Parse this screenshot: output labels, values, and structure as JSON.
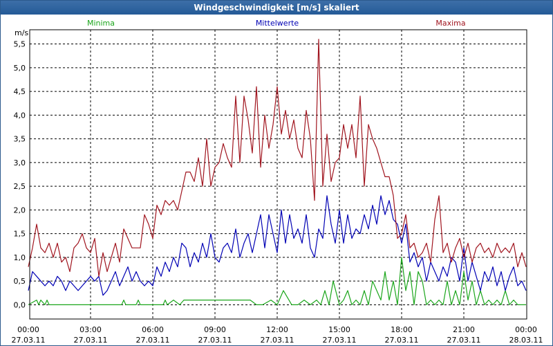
{
  "window": {
    "title": "Windgeschwindigkeit [m/s] skaliert"
  },
  "chart_data": {
    "type": "line",
    "title": "Windgeschwindigkeit [m/s] skaliert",
    "ylabel": "m/s",
    "xlabel": "",
    "ylim": [
      -0.3,
      5.8
    ],
    "xlim": [
      0,
      24
    ],
    "grid": true,
    "y_ticks": [
      "0,0",
      "0,5",
      "1,0",
      "1,5",
      "2,0",
      "2,5",
      "3,0",
      "3,5",
      "4,0",
      "4,5",
      "5,0",
      "5,5"
    ],
    "y_tick_values": [
      0,
      0.5,
      1,
      1.5,
      2,
      2.5,
      3,
      3.5,
      4,
      4.5,
      5,
      5.5
    ],
    "x_ticks": [
      {
        "time": "00:00",
        "date": "27.03.11",
        "hour": 0
      },
      {
        "time": "03:00",
        "date": "27.03.11",
        "hour": 3
      },
      {
        "time": "06:00",
        "date": "27.03.11",
        "hour": 6
      },
      {
        "time": "09:00",
        "date": "27.03.11",
        "hour": 9
      },
      {
        "time": "12:00",
        "date": "27.03.11",
        "hour": 12
      },
      {
        "time": "15:00",
        "date": "27.03.11",
        "hour": 15
      },
      {
        "time": "18:00",
        "date": "27.03.11",
        "hour": 18
      },
      {
        "time": "21:00",
        "date": "27.03.11",
        "hour": 21
      },
      {
        "time": "00:00",
        "date": "28.03.11",
        "hour": 24
      }
    ],
    "series": [
      {
        "name": "Minima",
        "color": "#1aa51a",
        "legend_position": "top-left",
        "x": [
          0,
          0.4,
          0.5,
          0.6,
          0.8,
          0.9,
          1.0,
          1.2,
          2.5,
          4.5,
          4.6,
          4.7,
          5.0,
          5.2,
          5.3,
          5.4,
          6.0,
          6.2,
          6.5,
          6.6,
          6.7,
          7.0,
          7.3,
          7.5,
          7.7,
          8.0,
          8.3,
          8.6,
          9.0,
          9.5,
          10.0,
          10.5,
          10.7,
          11.0,
          11.3,
          11.7,
          12.0,
          12.3,
          12.7,
          13.0,
          13.3,
          13.6,
          13.9,
          14.1,
          14.3,
          14.5,
          14.7,
          15.0,
          15.2,
          15.4,
          15.6,
          15.8,
          16.0,
          16.2,
          16.4,
          16.6,
          16.8,
          17.0,
          17.2,
          17.4,
          17.6,
          17.8,
          18.0,
          18.2,
          18.4,
          18.6,
          18.8,
          19.0,
          19.2,
          19.4,
          19.6,
          19.8,
          20.0,
          20.2,
          20.4,
          20.6,
          20.8,
          21.0,
          21.2,
          21.4,
          21.6,
          21.8,
          22.0,
          22.2,
          22.4,
          22.6,
          22.8,
          23.0,
          23.2,
          23.4,
          23.6,
          23.8,
          24.0
        ],
        "y": [
          0,
          0.1,
          0,
          0.1,
          0,
          0.1,
          0,
          0,
          0,
          0,
          0.1,
          0,
          0,
          0,
          0.1,
          0,
          0,
          0,
          0,
          0.1,
          0,
          0.1,
          0,
          0.1,
          0.1,
          0.1,
          0.1,
          0.1,
          0.1,
          0.1,
          0.1,
          0.1,
          0.1,
          0,
          0,
          0.1,
          0,
          0.3,
          0,
          0,
          0.1,
          0,
          0.1,
          0,
          0.3,
          0,
          0.5,
          0,
          0.1,
          0.3,
          0,
          0.1,
          0,
          0.3,
          0,
          0.5,
          0.3,
          0.1,
          0.7,
          0.1,
          0.5,
          0,
          1.0,
          0.3,
          0.7,
          0,
          0.7,
          0.5,
          0,
          0.1,
          0,
          0.1,
          0,
          0.5,
          0,
          0.3,
          0,
          0.7,
          0.1,
          0.5,
          0,
          0.3,
          0,
          0.1,
          0,
          0.1,
          0,
          0.3,
          0,
          0.1,
          0,
          0,
          0
        ]
      },
      {
        "name": "Mittelwerte",
        "color": "#0000b4",
        "legend_position": "top-center",
        "x": [
          0,
          0.2,
          0.4,
          0.6,
          0.8,
          1.0,
          1.2,
          1.4,
          1.6,
          1.8,
          2.0,
          2.2,
          2.4,
          2.6,
          2.8,
          3.0,
          3.2,
          3.4,
          3.6,
          3.8,
          4.0,
          4.2,
          4.4,
          4.6,
          4.8,
          5.0,
          5.2,
          5.4,
          5.6,
          5.8,
          6.0,
          6.2,
          6.4,
          6.6,
          6.8,
          7.0,
          7.2,
          7.4,
          7.6,
          7.8,
          8.0,
          8.2,
          8.4,
          8.6,
          8.8,
          9.0,
          9.2,
          9.4,
          9.6,
          9.8,
          10.0,
          10.2,
          10.4,
          10.6,
          10.8,
          11.0,
          11.2,
          11.4,
          11.6,
          11.8,
          12.0,
          12.2,
          12.4,
          12.6,
          12.8,
          13.0,
          13.2,
          13.4,
          13.6,
          13.8,
          14.0,
          14.2,
          14.4,
          14.6,
          14.8,
          15.0,
          15.2,
          15.4,
          15.6,
          15.8,
          16.0,
          16.2,
          16.4,
          16.6,
          16.8,
          17.0,
          17.2,
          17.4,
          17.6,
          17.8,
          18.0,
          18.2,
          18.4,
          18.6,
          18.8,
          19.0,
          19.2,
          19.4,
          19.6,
          19.8,
          20.0,
          20.2,
          20.4,
          20.6,
          20.8,
          21.0,
          21.2,
          21.4,
          21.6,
          21.8,
          22.0,
          22.2,
          22.4,
          22.6,
          22.8,
          23.0,
          23.2,
          23.4,
          23.6,
          23.8,
          24.0
        ],
        "y": [
          0.3,
          0.7,
          0.6,
          0.5,
          0.4,
          0.5,
          0.4,
          0.6,
          0.5,
          0.3,
          0.5,
          0.4,
          0.3,
          0.4,
          0.5,
          0.6,
          0.5,
          0.6,
          0.2,
          0.3,
          0.5,
          0.7,
          0.4,
          0.6,
          0.8,
          0.5,
          0.7,
          0.5,
          0.4,
          0.5,
          0.4,
          0.8,
          0.6,
          0.9,
          0.7,
          1.0,
          0.8,
          1.3,
          1.2,
          0.8,
          1.1,
          0.9,
          1.3,
          1.0,
          1.5,
          1.0,
          0.9,
          1.2,
          1.3,
          1.1,
          1.6,
          1.0,
          1.3,
          1.5,
          1.1,
          1.5,
          1.9,
          1.2,
          1.9,
          1.5,
          1.1,
          2.0,
          1.3,
          1.9,
          1.4,
          1.6,
          1.3,
          1.9,
          1.2,
          1.0,
          1.6,
          1.4,
          2.3,
          1.7,
          1.3,
          2.0,
          1.3,
          1.9,
          1.4,
          1.6,
          1.5,
          1.9,
          1.6,
          2.1,
          1.7,
          2.3,
          1.9,
          2.2,
          1.8,
          1.7,
          1.3,
          1.7,
          0.9,
          1.1,
          0.8,
          1.0,
          0.5,
          0.9,
          0.7,
          0.5,
          0.8,
          0.6,
          1.0,
          0.9,
          0.5,
          1.2,
          0.5,
          0.9,
          0.6,
          0.3,
          0.7,
          0.5,
          0.8,
          0.4,
          0.7,
          0.3,
          0.6,
          0.8,
          0.4,
          0.5,
          0.3
        ]
      },
      {
        "name": "Maxima",
        "color": "#a0141e",
        "legend_position": "top-right",
        "x": [
          0,
          0.2,
          0.4,
          0.6,
          0.8,
          1.0,
          1.2,
          1.4,
          1.6,
          1.8,
          2.0,
          2.2,
          2.4,
          2.6,
          2.8,
          3.0,
          3.2,
          3.4,
          3.6,
          3.8,
          4.0,
          4.2,
          4.4,
          4.6,
          4.8,
          5.0,
          5.2,
          5.4,
          5.6,
          5.8,
          6.0,
          6.2,
          6.4,
          6.6,
          6.8,
          7.0,
          7.2,
          7.4,
          7.6,
          7.8,
          8.0,
          8.2,
          8.4,
          8.6,
          8.8,
          9.0,
          9.2,
          9.4,
          9.6,
          9.8,
          10.0,
          10.2,
          10.4,
          10.6,
          10.8,
          11.0,
          11.2,
          11.4,
          11.6,
          11.8,
          12.0,
          12.2,
          12.4,
          12.6,
          12.8,
          13.0,
          13.2,
          13.4,
          13.6,
          13.8,
          14.0,
          14.2,
          14.4,
          14.6,
          14.8,
          15.0,
          15.2,
          15.4,
          15.6,
          15.8,
          16.0,
          16.2,
          16.4,
          16.6,
          16.8,
          17.0,
          17.2,
          17.4,
          17.6,
          17.8,
          18.0,
          18.2,
          18.4,
          18.6,
          18.8,
          19.0,
          19.2,
          19.4,
          19.6,
          19.8,
          20.0,
          20.2,
          20.4,
          20.6,
          20.8,
          21.0,
          21.2,
          21.4,
          21.6,
          21.8,
          22.0,
          22.2,
          22.4,
          22.6,
          22.8,
          23.0,
          23.2,
          23.4,
          23.6,
          23.8,
          24.0
        ],
        "y": [
          0.8,
          1.2,
          1.7,
          1.2,
          1.1,
          1.3,
          1.0,
          1.3,
          0.9,
          1.0,
          0.7,
          1.2,
          1.3,
          1.5,
          1.2,
          1.1,
          1.4,
          0.6,
          1.1,
          0.7,
          1.0,
          1.3,
          0.9,
          1.6,
          1.4,
          1.2,
          1.2,
          1.2,
          1.9,
          1.7,
          1.4,
          2.1,
          1.9,
          2.2,
          2.1,
          2.2,
          2.0,
          2.4,
          2.8,
          2.8,
          2.6,
          3.1,
          2.5,
          3.5,
          2.5,
          2.9,
          3.0,
          3.4,
          3.1,
          2.9,
          4.4,
          3.0,
          4.4,
          3.9,
          3.2,
          4.6,
          2.9,
          4.0,
          3.3,
          3.8,
          4.6,
          3.6,
          4.1,
          3.5,
          3.9,
          3.3,
          3.1,
          4.1,
          3.5,
          2.2,
          5.6,
          2.5,
          3.6,
          2.6,
          3.0,
          3.1,
          3.8,
          3.3,
          3.8,
          3.1,
          4.4,
          2.5,
          3.8,
          3.5,
          3.3,
          3.0,
          2.7,
          2.7,
          2.3,
          1.4,
          1.5,
          1.9,
          1.2,
          1.3,
          1.0,
          1.1,
          1.3,
          0.9,
          1.8,
          2.3,
          1.1,
          1.3,
          0.9,
          1.2,
          1.4,
          1.0,
          1.3,
          0.9,
          1.2,
          1.3,
          1.1,
          1.2,
          1.0,
          1.3,
          1.1,
          1.2,
          1.1,
          1.3,
          0.8,
          1.1,
          0.8
        ]
      }
    ]
  }
}
